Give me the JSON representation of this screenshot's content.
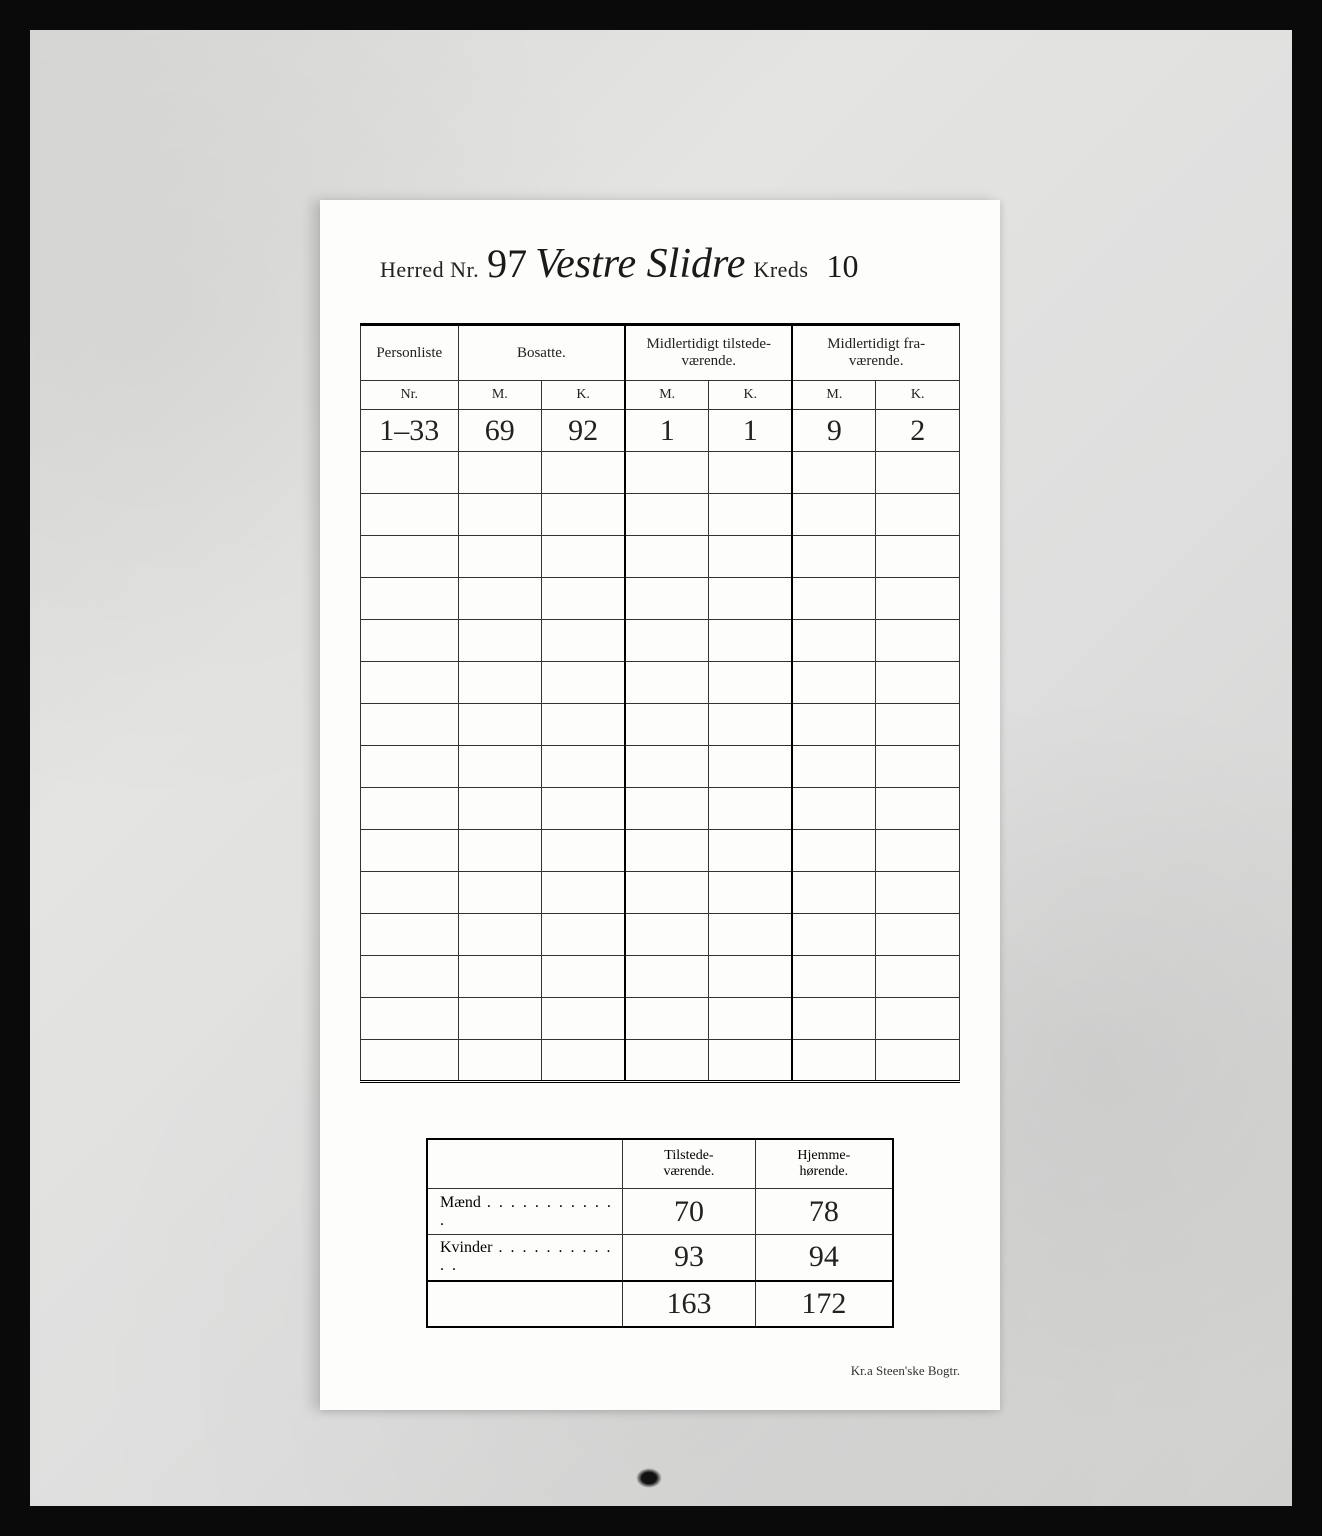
{
  "header": {
    "herred_label": "Herred Nr.",
    "herred_nr": "97",
    "district_name": "Vestre Slidre",
    "kreds_label": "Kreds",
    "kreds_nr": "10"
  },
  "main_table": {
    "columns": {
      "personliste": "Personliste",
      "nr": "Nr.",
      "bosatte": "Bosatte.",
      "midl_tilstede": "Midlertidigt tilstede-\nværende.",
      "midl_fra": "Midlertidigt fra-\nværende.",
      "m": "M.",
      "k": "K."
    },
    "rows": [
      {
        "nr": "1–33",
        "bos_m": "69",
        "bos_k": "92",
        "til_m": "1",
        "til_k": "1",
        "fra_m": "9",
        "fra_k": "2"
      }
    ],
    "empty_rows": 15
  },
  "summary_table": {
    "col_tilstede": "Tilstede-\nværende.",
    "col_hjemme": "Hjemme-\nhørende.",
    "row_maend": "Mænd",
    "row_kvinder": "Kvinder",
    "maend_tilstede": "70",
    "maend_hjemme": "78",
    "kvinder_tilstede": "93",
    "kvinder_hjemme": "94",
    "total_tilstede": "163",
    "total_hjemme": "172"
  },
  "imprint": "Kr.a   Steen'ske Bogtr.",
  "colors": {
    "page_bg": "#0a0a0a",
    "marble_bg": "#dedede",
    "paper_bg": "#fdfdfb",
    "ink": "#1a1a1a",
    "rule": "#333333"
  }
}
